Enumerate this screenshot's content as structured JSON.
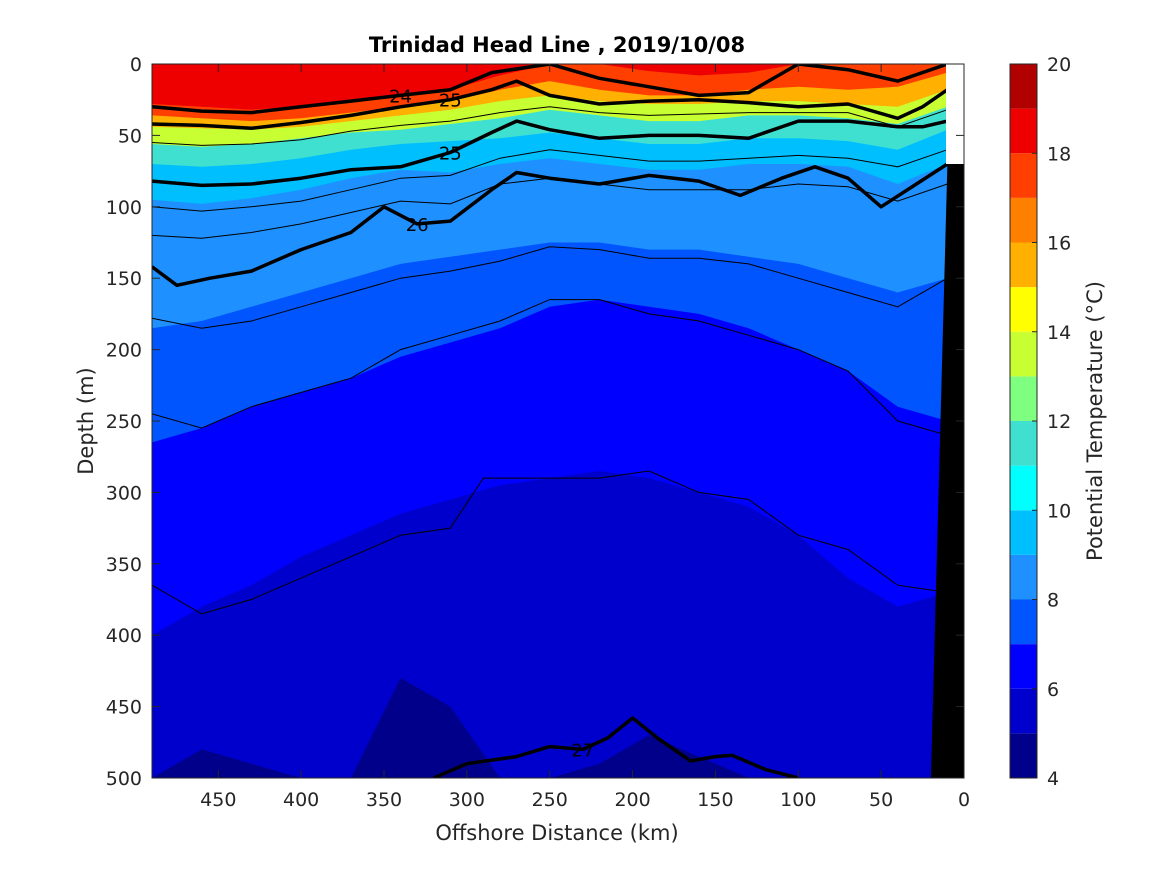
{
  "chart_data": {
    "type": "heatmap",
    "title": "Trinidad Head Line , 2019/10/08",
    "xlabel": "Offshore Distance (km)",
    "ylabel": "Depth (m)",
    "colorbar_label": "Potential Temperature (°C)",
    "xlim": [
      490,
      0
    ],
    "ylim": [
      0,
      500
    ],
    "x_reversed": true,
    "y_reversed": true,
    "x_ticks": [
      "450",
      "400",
      "350",
      "300",
      "250",
      "200",
      "150",
      "100",
      "50",
      "0"
    ],
    "x_tick_values": [
      450,
      400,
      350,
      300,
      250,
      200,
      150,
      100,
      50,
      0
    ],
    "y_ticks": [
      "0",
      "50",
      "100",
      "150",
      "200",
      "250",
      "300",
      "350",
      "400",
      "450",
      "500"
    ],
    "y_tick_values": [
      0,
      50,
      100,
      150,
      200,
      250,
      300,
      350,
      400,
      450,
      500
    ],
    "colorbar_ticks": [
      "4",
      "6",
      "8",
      "10",
      "12",
      "14",
      "16",
      "18",
      "20"
    ],
    "colorbar_tick_values": [
      4,
      6,
      8,
      10,
      12,
      14,
      16,
      18,
      20
    ],
    "colorbar_levels": [
      4,
      5,
      6,
      7,
      8,
      9,
      10,
      11,
      12,
      13,
      14,
      15,
      16,
      17,
      18,
      19,
      20
    ],
    "colorbar_colors": [
      "#00008b",
      "#0000cd",
      "#0000ff",
      "#0055ff",
      "#1e90ff",
      "#00bfff",
      "#00ffff",
      "#40e0d0",
      "#7fff7f",
      "#c8ff32",
      "#ffff00",
      "#ffb000",
      "#ff7f00",
      "#ff3f00",
      "#ee0000",
      "#b00000"
    ],
    "temperature_isotherm_depths": [
      {
        "temp": 18,
        "x": [
          490,
          460,
          430,
          400,
          370,
          340,
          310,
          280,
          250,
          220,
          190,
          160,
          130,
          100,
          70,
          40,
          10
        ],
        "depth": [
          28,
          30,
          32,
          30,
          26,
          22,
          18,
          8,
          0,
          0,
          5,
          8,
          6,
          0,
          0,
          0,
          0
        ]
      },
      {
        "temp": 16,
        "x": [
          490,
          460,
          430,
          400,
          370,
          340,
          310,
          280,
          250,
          220,
          190,
          160,
          130,
          100,
          70,
          40,
          10
        ],
        "depth": [
          36,
          38,
          40,
          38,
          34,
          30,
          26,
          18,
          12,
          18,
          22,
          22,
          18,
          16,
          18,
          16,
          6
        ]
      },
      {
        "temp": 14,
        "x": [
          490,
          460,
          430,
          400,
          370,
          340,
          310,
          280,
          250,
          220,
          190,
          160,
          130,
          100,
          70,
          40,
          10
        ],
        "depth": [
          44,
          45,
          46,
          44,
          40,
          36,
          32,
          26,
          22,
          26,
          28,
          28,
          26,
          26,
          28,
          30,
          18
        ]
      },
      {
        "temp": 12,
        "x": [
          490,
          460,
          430,
          400,
          370,
          340,
          310,
          280,
          250,
          220,
          190,
          160,
          130,
          100,
          70,
          40,
          10
        ],
        "depth": [
          56,
          58,
          56,
          52,
          48,
          46,
          42,
          38,
          32,
          36,
          40,
          40,
          36,
          36,
          38,
          42,
          30
        ]
      },
      {
        "temp": 10,
        "x": [
          490,
          460,
          430,
          400,
          370,
          340,
          310,
          280,
          250,
          220,
          190,
          160,
          130,
          100,
          70,
          40,
          10
        ],
        "depth": [
          70,
          72,
          70,
          66,
          60,
          56,
          54,
          52,
          48,
          52,
          56,
          56,
          52,
          52,
          54,
          60,
          46
        ]
      },
      {
        "temp": 9,
        "x": [
          490,
          460,
          430,
          400,
          370,
          340,
          310,
          280,
          250,
          220,
          190,
          160,
          130,
          100,
          70,
          40,
          10
        ],
        "depth": [
          95,
          98,
          94,
          88,
          80,
          74,
          76,
          70,
          66,
          70,
          74,
          74,
          70,
          70,
          72,
          84,
          70
        ]
      },
      {
        "temp": 8,
        "x": [
          490,
          460,
          430,
          400,
          370,
          340,
          310,
          280,
          250,
          220,
          190,
          160,
          130,
          100,
          70,
          40,
          10
        ],
        "depth": [
          185,
          180,
          170,
          160,
          150,
          140,
          135,
          130,
          125,
          125,
          130,
          130,
          135,
          140,
          150,
          160,
          150
        ]
      },
      {
        "temp": 7,
        "x": [
          490,
          460,
          430,
          400,
          370,
          340,
          310,
          280,
          250,
          220,
          190,
          160,
          130,
          100,
          70,
          40,
          10
        ],
        "depth": [
          265,
          255,
          240,
          230,
          220,
          205,
          195,
          185,
          170,
          165,
          170,
          175,
          185,
          200,
          215,
          240,
          250
        ]
      },
      {
        "temp": 6,
        "x": [
          490,
          460,
          430,
          400,
          370,
          340,
          310,
          280,
          250,
          220,
          190,
          160,
          130,
          100,
          70,
          40,
          10
        ],
        "depth": [
          400,
          380,
          365,
          345,
          330,
          315,
          305,
          295,
          290,
          285,
          290,
          300,
          310,
          330,
          360,
          380,
          370
        ]
      },
      {
        "temp": 5,
        "x": [
          490,
          460,
          430,
          400,
          370,
          340,
          310,
          280,
          250,
          220,
          190,
          160,
          130,
          100,
          70,
          40,
          10
        ],
        "depth": [
          500,
          480,
          490,
          500,
          500,
          430,
          450,
          500,
          500,
          490,
          470,
          485,
          500,
          500,
          500,
          500,
          500
        ]
      }
    ],
    "density_contours": [
      {
        "label": "24",
        "x": [
          490,
          460,
          430,
          400,
          370,
          340,
          310,
          285,
          250,
          220,
          190,
          160,
          130,
          100,
          70,
          40,
          10
        ],
        "depth": [
          30,
          33,
          34,
          30,
          26,
          22,
          18,
          6,
          0,
          10,
          16,
          22,
          20,
          0,
          4,
          12,
          0
        ]
      },
      {
        "label": "25",
        "x": [
          490,
          460,
          430,
          400,
          370,
          340,
          310,
          285,
          270,
          250,
          220,
          190,
          160,
          130,
          100,
          70,
          40,
          25,
          10
        ],
        "depth": [
          42,
          43,
          45,
          41,
          36,
          30,
          25,
          18,
          12,
          22,
          28,
          26,
          25,
          27,
          30,
          28,
          38,
          30,
          18
        ]
      },
      {
        "label": "25",
        "x": [
          490,
          460,
          430,
          400,
          370,
          340,
          310,
          285,
          270,
          250,
          220,
          190,
          160,
          130,
          100,
          70,
          40,
          25,
          10
        ],
        "depth": [
          82,
          85,
          84,
          80,
          74,
          72,
          62,
          48,
          40,
          46,
          52,
          50,
          50,
          52,
          40,
          40,
          44,
          44,
          40
        ]
      },
      {
        "label": "26",
        "x": [
          490,
          475,
          455,
          430,
          400,
          370,
          350,
          330,
          310,
          285,
          270,
          250,
          220,
          190,
          160,
          135,
          110,
          90,
          70,
          50,
          30,
          10
        ],
        "depth": [
          142,
          155,
          150,
          145,
          130,
          118,
          100,
          112,
          110,
          88,
          76,
          80,
          84,
          78,
          82,
          92,
          80,
          72,
          80,
          100,
          85,
          70
        ]
      },
      {
        "label": "27",
        "x": [
          320,
          300,
          270,
          250,
          230,
          215,
          200,
          185,
          165,
          150,
          140,
          120,
          100
        ],
        "depth": [
          500,
          490,
          485,
          478,
          480,
          472,
          458,
          472,
          488,
          485,
          484,
          494,
          500
        ]
      }
    ],
    "thin_contours": [
      {
        "x": [
          490,
          460,
          430,
          400,
          370,
          340,
          310,
          280,
          250,
          220,
          190,
          160,
          130,
          100,
          70,
          40,
          10
        ],
        "depth": [
          55,
          57,
          56,
          53,
          47,
          43,
          40,
          34,
          30,
          34,
          36,
          35,
          34,
          34,
          34,
          44,
          32
        ]
      },
      {
        "x": [
          490,
          460,
          430,
          400,
          370,
          340,
          310,
          280,
          250,
          220,
          190,
          160,
          130,
          100,
          70,
          40,
          10
        ],
        "depth": [
          100,
          103,
          100,
          96,
          88,
          80,
          78,
          66,
          60,
          64,
          68,
          68,
          66,
          64,
          66,
          72,
          60
        ]
      },
      {
        "x": [
          490,
          460,
          430,
          400,
          370,
          340,
          310,
          280,
          250,
          220,
          190,
          160,
          130,
          100,
          70,
          40,
          10
        ],
        "depth": [
          120,
          122,
          118,
          112,
          104,
          96,
          98,
          84,
          80,
          84,
          88,
          88,
          88,
          84,
          86,
          96,
          84
        ]
      },
      {
        "x": [
          490,
          460,
          430,
          400,
          370,
          340,
          310,
          280,
          250,
          220,
          190,
          160,
          130,
          100,
          70,
          40,
          10
        ],
        "depth": [
          178,
          185,
          180,
          170,
          160,
          150,
          145,
          138,
          128,
          130,
          136,
          136,
          140,
          150,
          160,
          170,
          150
        ]
      },
      {
        "x": [
          490,
          460,
          430,
          400,
          370,
          340,
          310,
          280,
          250,
          220,
          190,
          160,
          130,
          100,
          70,
          40,
          10
        ],
        "depth": [
          245,
          255,
          240,
          230,
          220,
          200,
          190,
          180,
          165,
          165,
          175,
          180,
          190,
          200,
          215,
          250,
          260
        ]
      },
      {
        "x": [
          490,
          460,
          430,
          400,
          370,
          340,
          310,
          290,
          250,
          220,
          190,
          160,
          130,
          100,
          70,
          40,
          10
        ],
        "depth": [
          365,
          385,
          375,
          360,
          345,
          330,
          325,
          290,
          290,
          290,
          285,
          300,
          305,
          330,
          340,
          365,
          370
        ]
      }
    ],
    "topography": {
      "x": [
        20,
        10,
        0,
        0
      ],
      "depth": [
        500,
        70,
        0,
        500
      ],
      "color": "#000000"
    }
  }
}
